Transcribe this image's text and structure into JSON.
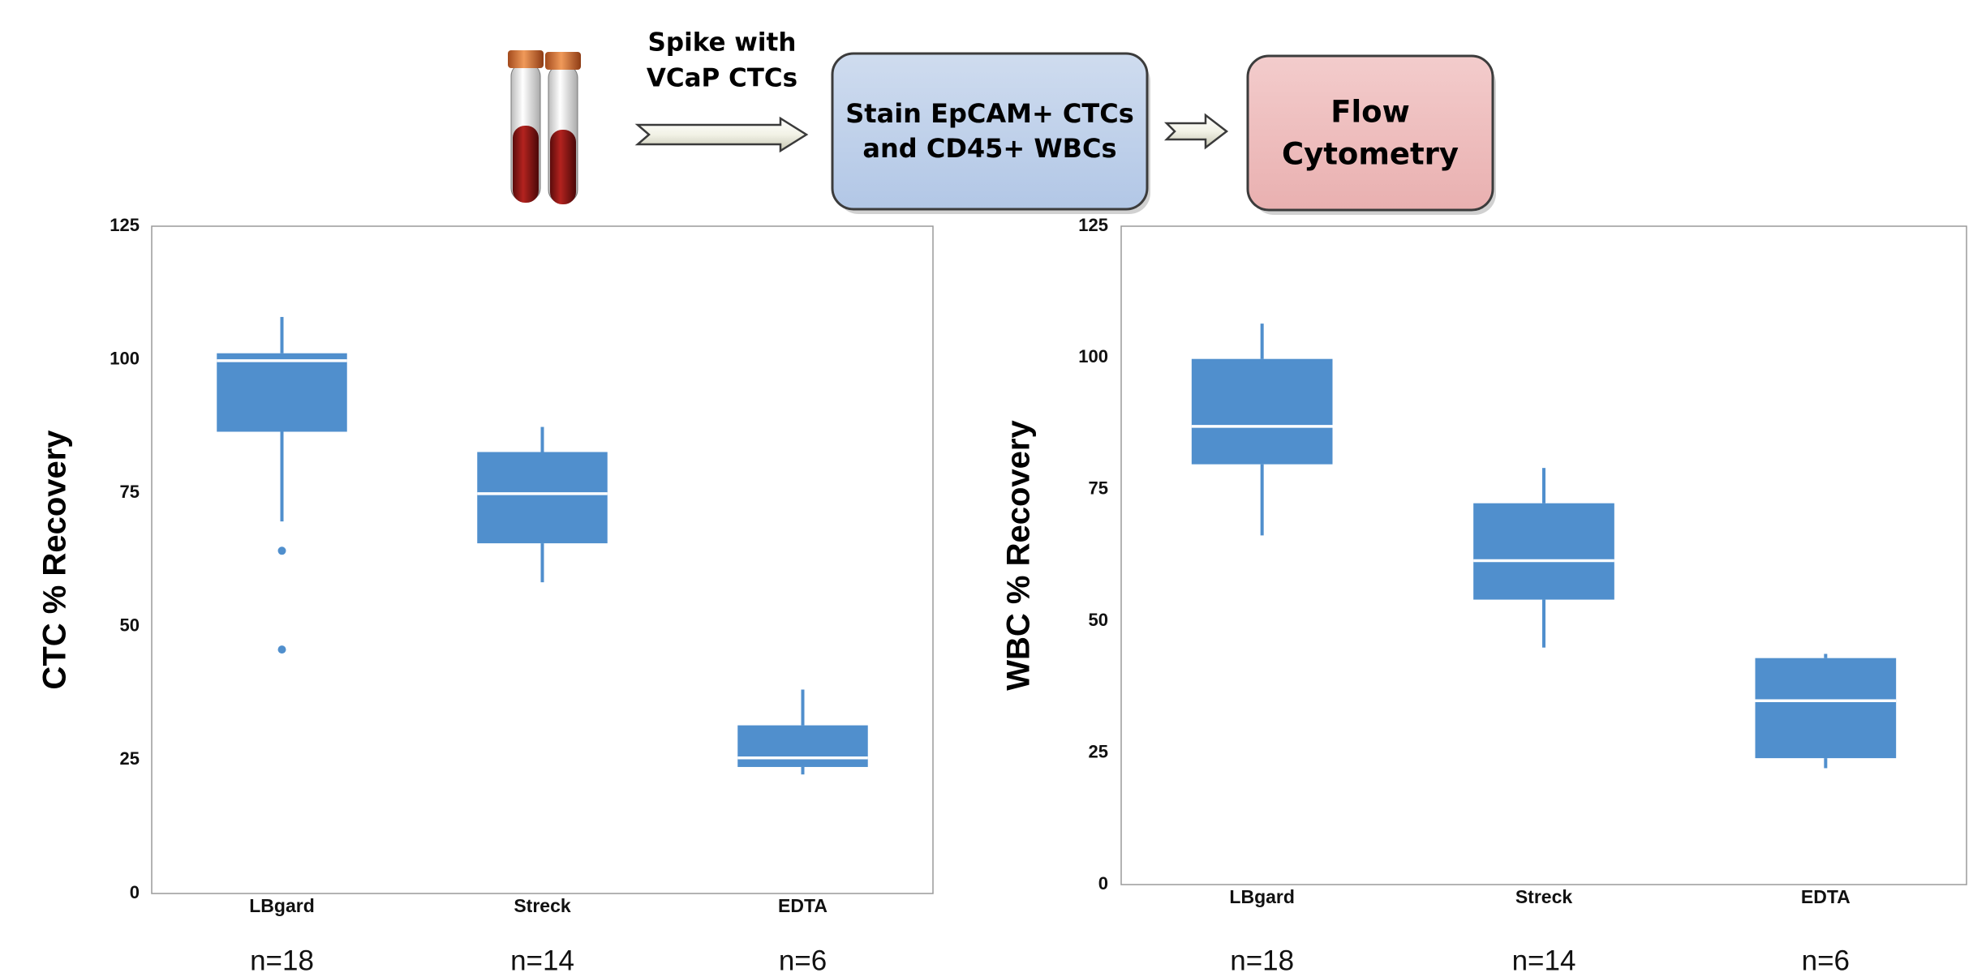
{
  "workflow": {
    "spike_label": [
      "Spike with",
      "VCaP CTCs"
    ],
    "steps": [
      {
        "label": [
          "Stain EpCAM+ CTCs",
          "and CD45+ WBCs"
        ]
      },
      {
        "label": [
          "Flow",
          "Cytometry"
        ]
      }
    ]
  },
  "chart_data": [
    {
      "type": "box",
      "ylabel": "CTC % Recovery",
      "categories": [
        "LBgard",
        "Streck",
        "EDTA"
      ],
      "sample_sizes": [
        "n=18",
        "n=14",
        "n=6"
      ],
      "color": "#508fcd",
      "median_color": "#ffffff",
      "ylim": [
        0,
        125
      ],
      "yticks": [
        0,
        25,
        50,
        75,
        100,
        125
      ],
      "boxes": [
        {
          "min": 69.7,
          "q1": 86.5,
          "median": 99.8,
          "q3": 101.2,
          "max": 108,
          "outliers": [
            64.2,
            45.7
          ]
        },
        {
          "min": 58.3,
          "q1": 65.6,
          "median": 74.9,
          "q3": 82.7,
          "max": 87.4,
          "outliers": []
        },
        {
          "min": 22.3,
          "q1": 23.7,
          "median": 25.4,
          "q3": 31.5,
          "max": 38.2,
          "outliers": []
        }
      ]
    },
    {
      "type": "box",
      "ylabel": "WBC % Recovery",
      "categories": [
        "LBgard",
        "Streck",
        "EDTA"
      ],
      "sample_sizes": [
        "n=18",
        "n=14",
        "n=6"
      ],
      "color": "#508fcd",
      "median_color": "#ffffff",
      "ylim": [
        0,
        125
      ],
      "yticks": [
        0,
        25,
        50,
        75,
        100,
        125
      ],
      "boxes": [
        {
          "min": 66.3,
          "q1": 79.8,
          "median": 87,
          "q3": 99.8,
          "max": 106.5,
          "outliers": []
        },
        {
          "min": 45,
          "q1": 54.1,
          "median": 61.5,
          "q3": 72.4,
          "max": 79.1,
          "outliers": []
        },
        {
          "min": 22.1,
          "q1": 24,
          "median": 34.9,
          "q3": 43,
          "max": 43.8,
          "outliers": []
        }
      ]
    }
  ]
}
